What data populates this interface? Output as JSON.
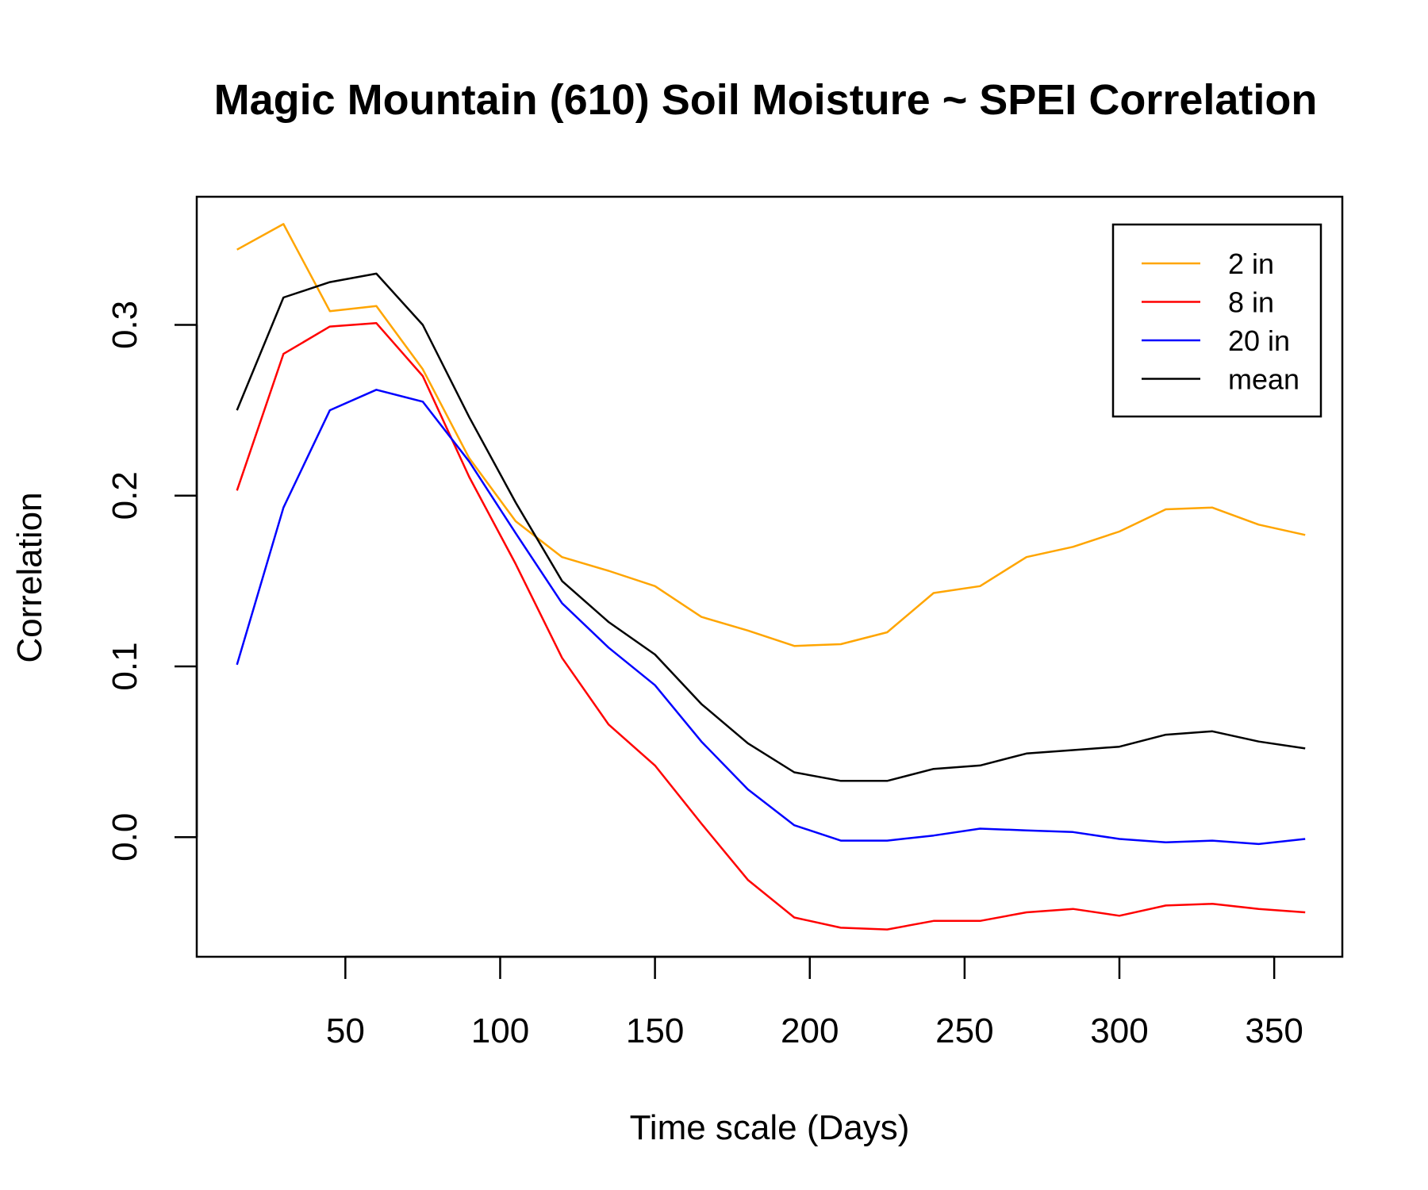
{
  "chart_data": {
    "type": "line",
    "title": "Magic Mountain (610) Soil Moisture ~ SPEI Correlation",
    "xlabel": "Time scale (Days)",
    "ylabel": "Correlation",
    "xlim": [
      2,
      372
    ],
    "ylim": [
      -0.07,
      0.375
    ],
    "xticks": [
      50,
      100,
      150,
      200,
      250,
      300,
      350
    ],
    "yticks": [
      0.0,
      0.1,
      0.2,
      0.3
    ],
    "xtick_labels": [
      "50",
      "100",
      "150",
      "200",
      "250",
      "300",
      "350"
    ],
    "ytick_labels": [
      "0.0",
      "0.1",
      "0.2",
      "0.3"
    ],
    "legend_position": "top-right",
    "grid": false,
    "x": [
      15,
      30,
      45,
      60,
      75,
      90,
      105,
      120,
      135,
      150,
      165,
      180,
      195,
      210,
      225,
      240,
      255,
      270,
      285,
      300,
      315,
      330,
      345,
      360
    ],
    "series": [
      {
        "name": "2 in",
        "color": "#FFA500",
        "values": [
          0.344,
          0.359,
          0.308,
          0.311,
          0.274,
          0.222,
          0.185,
          0.164,
          0.156,
          0.147,
          0.129,
          0.121,
          0.112,
          0.113,
          0.12,
          0.143,
          0.147,
          0.164,
          0.17,
          0.179,
          0.192,
          0.193,
          0.183,
          0.177
        ]
      },
      {
        "name": "8 in",
        "color": "#FF0000",
        "values": [
          0.203,
          0.283,
          0.299,
          0.301,
          0.27,
          0.211,
          0.16,
          0.105,
          0.066,
          0.042,
          0.008,
          -0.025,
          -0.047,
          -0.053,
          -0.054,
          -0.049,
          -0.049,
          -0.044,
          -0.042,
          -0.046,
          -0.04,
          -0.039,
          -0.042,
          -0.044
        ]
      },
      {
        "name": "20 in",
        "color": "#0000FF",
        "values": [
          0.101,
          0.193,
          0.25,
          0.262,
          0.255,
          0.22,
          0.178,
          0.137,
          0.111,
          0.089,
          0.056,
          0.028,
          0.007,
          -0.002,
          -0.002,
          0.001,
          0.005,
          0.004,
          0.003,
          -0.001,
          -0.003,
          -0.002,
          -0.004,
          -0.001
        ]
      },
      {
        "name": "mean",
        "color": "#000000",
        "values": [
          0.25,
          0.316,
          0.325,
          0.33,
          0.3,
          0.246,
          0.196,
          0.15,
          0.126,
          0.107,
          0.078,
          0.055,
          0.038,
          0.033,
          0.033,
          0.04,
          0.042,
          0.049,
          0.051,
          0.053,
          0.06,
          0.062,
          0.056,
          0.052
        ]
      }
    ]
  }
}
